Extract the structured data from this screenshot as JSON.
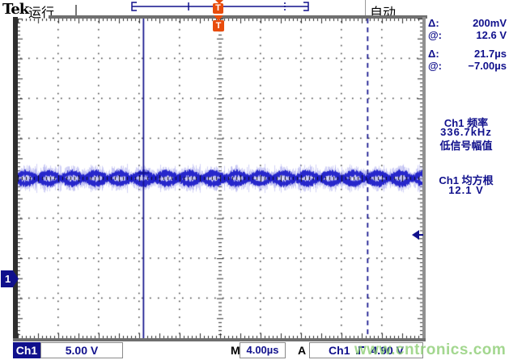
{
  "header": {
    "brand": "Tek",
    "run_status": "运行",
    "acquire_mode": "自动"
  },
  "trigger_marker": "T",
  "readouts": {
    "delta_v_label": "Δ:",
    "delta_v": "200mV",
    "at_v_label": "@:",
    "at_v": "12.6 V",
    "delta_t_label": "Δ:",
    "delta_t": "21.7µs",
    "at_t_label": "@:",
    "at_t": "−7.00µs",
    "meas1_source": "Ch1 频率",
    "meas1_value": "336.7kHz",
    "meas1_note": "低信号幅值",
    "meas2_source": "Ch1 均方根",
    "meas2_value": "12.1 V"
  },
  "channel_marker": "1",
  "statusbar": {
    "ch": "Ch1",
    "volts_per_div": "5.00 V",
    "m_label": "M",
    "time_per_div": "4.00µs",
    "trig_label": "A",
    "trig_source": "Ch1",
    "trig_level": "4.90 V"
  },
  "watermark": "www.cntronics.com",
  "colors": {
    "navy": "#10108c",
    "orange": "#e84c0c",
    "wave_dark": "#1e1ec8",
    "wave_light": "#9a9aec",
    "grid": "#4a4a4a",
    "ticks": "#2a2a2a",
    "watermark_green": "rgba(140,205,115,0.8)"
  }
}
